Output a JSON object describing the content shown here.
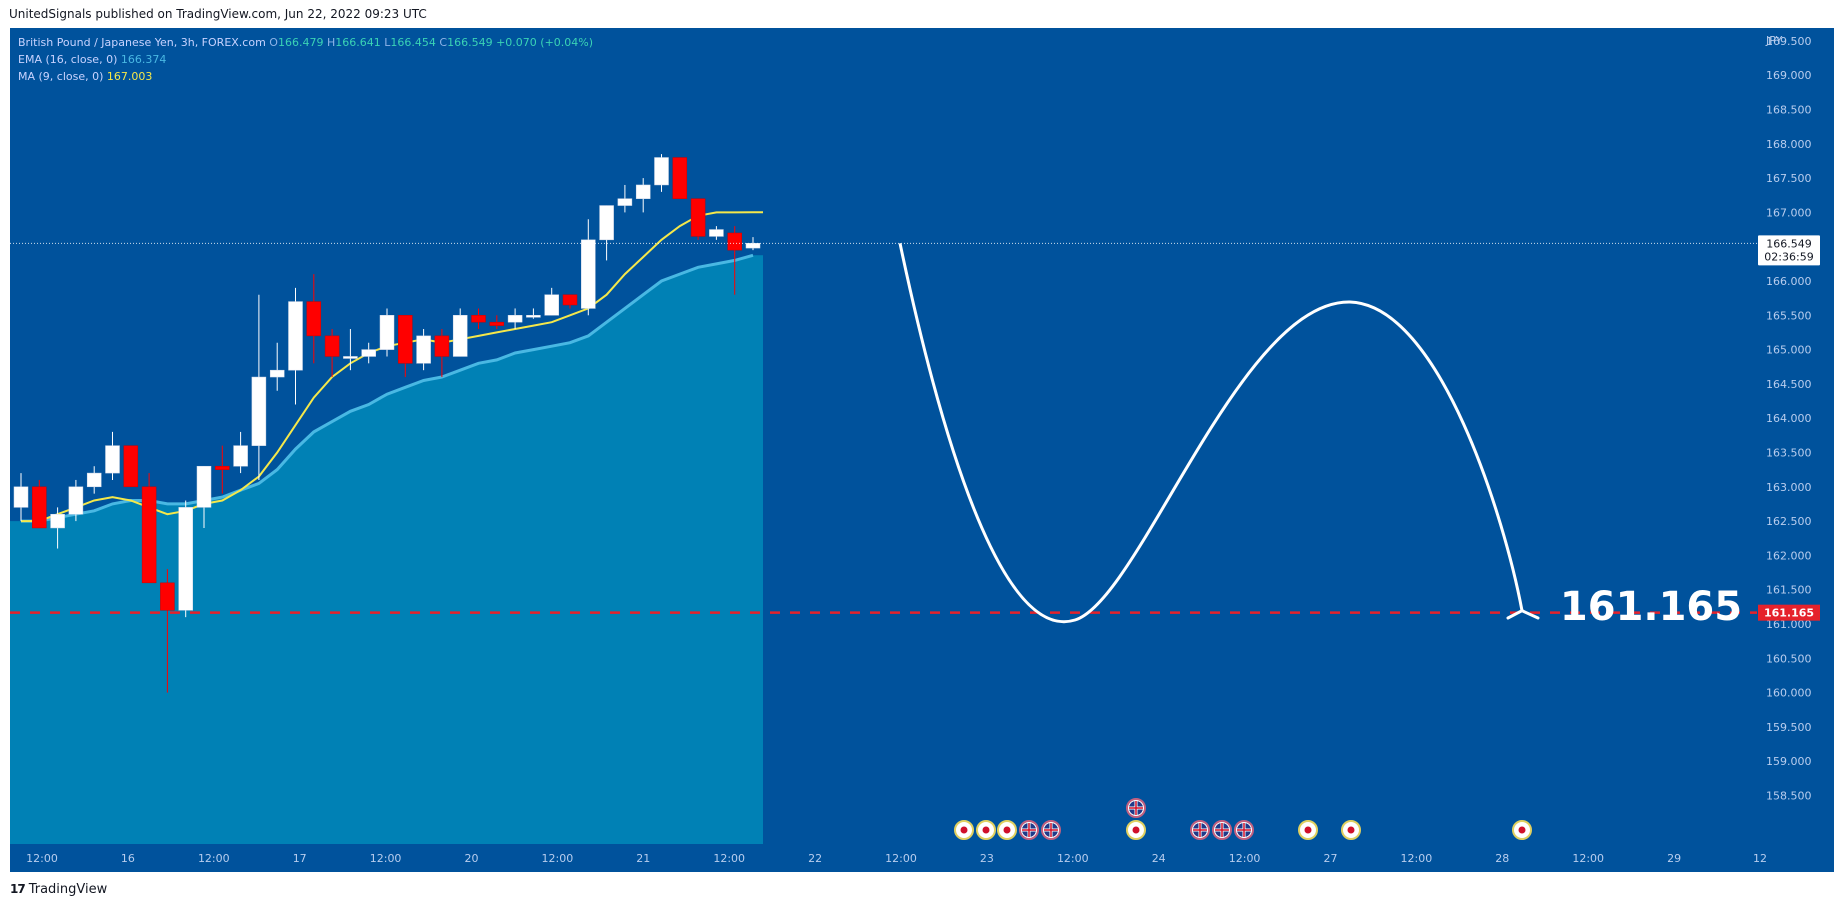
{
  "header": {
    "publish_text": "UnitedSignals published on TradingView.com, Jun 22, 2022 09:23 UTC"
  },
  "legend": {
    "symbol": "British Pound / Japanese Yen, 3h, FOREX.com",
    "o_label": "O",
    "o_value": "166.479",
    "h_label": "H",
    "h_value": "166.641",
    "l_label": "L",
    "l_value": "166.454",
    "c_label": "C",
    "c_value": "166.549",
    "change": "+0.070 (+0.04%)",
    "ema_label": "EMA (16, close, 0)",
    "ema_value": "166.374",
    "ma_label": "MA (9, close, 0)",
    "ma_value": "167.003"
  },
  "price_axis": {
    "currency": "JPY",
    "ticks": [
      "169.500",
      "169.000",
      "168.500",
      "168.000",
      "167.500",
      "167.000",
      "166.500",
      "166.000",
      "165.500",
      "165.000",
      "164.500",
      "164.000",
      "163.500",
      "163.000",
      "162.500",
      "162.000",
      "161.500",
      "161.000",
      "160.500",
      "160.000",
      "159.500",
      "159.000",
      "158.500"
    ],
    "current_price": "166.549",
    "countdown": "02:36:59",
    "target_price": "161.165"
  },
  "time_axis": {
    "labels": [
      "12:00",
      "16",
      "12:00",
      "17",
      "12:00",
      "20",
      "12:00",
      "21",
      "12:00",
      "22",
      "12:00",
      "23",
      "12:00",
      "24",
      "12:00",
      "27",
      "12:00",
      "28",
      "12:00",
      "29",
      "12"
    ]
  },
  "annotation": {
    "target_text": "161.165"
  },
  "footer": {
    "brand": "TradingView"
  },
  "colors": {
    "background": "#00529c",
    "area_fill": "#0081b5",
    "ema_line": "#49b8e3",
    "ma_line": "#f5e84a",
    "bull_candle": "#ffffff",
    "bear_candle": "#ff0000",
    "target_line": "#e5222b",
    "projection_path": "#ffffff"
  },
  "chart_data": {
    "type": "candlestick",
    "symbol": "British Pound / Japanese Yen, 3h, FOREX.com",
    "timeframe": "3h",
    "y_range": [
      158.2,
      170.0
    ],
    "candles": [
      {
        "o": 162.7,
        "h": 163.2,
        "l": 162.5,
        "c": 163.0
      },
      {
        "o": 163.0,
        "h": 163.1,
        "l": 162.4,
        "c": 162.4
      },
      {
        "o": 162.4,
        "h": 162.7,
        "l": 162.1,
        "c": 162.6
      },
      {
        "o": 162.6,
        "h": 163.1,
        "l": 162.5,
        "c": 163.0
      },
      {
        "o": 163.0,
        "h": 163.3,
        "l": 162.9,
        "c": 163.2
      },
      {
        "o": 163.2,
        "h": 163.8,
        "l": 163.1,
        "c": 163.6
      },
      {
        "o": 163.6,
        "h": 163.6,
        "l": 163.0,
        "c": 163.0
      },
      {
        "o": 163.0,
        "h": 163.2,
        "l": 161.6,
        "c": 161.6
      },
      {
        "o": 161.6,
        "h": 161.8,
        "l": 160.0,
        "c": 161.2
      },
      {
        "o": 161.2,
        "h": 162.8,
        "l": 161.1,
        "c": 162.7
      },
      {
        "o": 162.7,
        "h": 163.3,
        "l": 162.4,
        "c": 163.3
      },
      {
        "o": 163.3,
        "h": 163.6,
        "l": 162.9,
        "c": 163.25
      },
      {
        "o": 163.3,
        "h": 163.8,
        "l": 163.2,
        "c": 163.6
      },
      {
        "o": 163.6,
        "h": 165.8,
        "l": 163.1,
        "c": 164.6
      },
      {
        "o": 164.6,
        "h": 165.1,
        "l": 164.4,
        "c": 164.7
      },
      {
        "o": 164.7,
        "h": 165.9,
        "l": 164.2,
        "c": 165.7
      },
      {
        "o": 165.7,
        "h": 166.1,
        "l": 164.8,
        "c": 165.2
      },
      {
        "o": 165.2,
        "h": 165.3,
        "l": 164.6,
        "c": 164.9
      },
      {
        "o": 164.9,
        "h": 165.3,
        "l": 164.7,
        "c": 164.9
      },
      {
        "o": 164.9,
        "h": 165.1,
        "l": 164.8,
        "c": 165.0
      },
      {
        "o": 165.0,
        "h": 165.6,
        "l": 164.9,
        "c": 165.5
      },
      {
        "o": 165.5,
        "h": 165.5,
        "l": 164.6,
        "c": 164.8
      },
      {
        "o": 164.8,
        "h": 165.3,
        "l": 164.7,
        "c": 165.2
      },
      {
        "o": 165.2,
        "h": 165.3,
        "l": 164.6,
        "c": 164.9
      },
      {
        "o": 164.9,
        "h": 165.6,
        "l": 164.9,
        "c": 165.5
      },
      {
        "o": 165.5,
        "h": 165.6,
        "l": 165.3,
        "c": 165.4
      },
      {
        "o": 165.4,
        "h": 165.5,
        "l": 165.3,
        "c": 165.35
      },
      {
        "o": 165.4,
        "h": 165.6,
        "l": 165.3,
        "c": 165.5
      },
      {
        "o": 165.5,
        "h": 165.6,
        "l": 165.45,
        "c": 165.5
      },
      {
        "o": 165.5,
        "h": 165.9,
        "l": 165.5,
        "c": 165.8
      },
      {
        "o": 165.8,
        "h": 165.8,
        "l": 165.6,
        "c": 165.65
      },
      {
        "o": 165.6,
        "h": 166.9,
        "l": 165.5,
        "c": 166.6
      },
      {
        "o": 166.6,
        "h": 167.1,
        "l": 166.3,
        "c": 167.1
      },
      {
        "o": 167.1,
        "h": 167.4,
        "l": 167.0,
        "c": 167.2
      },
      {
        "o": 167.2,
        "h": 167.5,
        "l": 167.0,
        "c": 167.4
      },
      {
        "o": 167.4,
        "h": 167.85,
        "l": 167.3,
        "c": 167.8
      },
      {
        "o": 167.8,
        "h": 167.8,
        "l": 167.2,
        "c": 167.2
      },
      {
        "o": 167.2,
        "h": 167.2,
        "l": 166.6,
        "c": 166.65
      },
      {
        "o": 166.65,
        "h": 166.8,
        "l": 166.6,
        "c": 166.75
      },
      {
        "o": 166.7,
        "h": 166.8,
        "l": 165.8,
        "c": 166.45
      },
      {
        "o": 166.48,
        "h": 166.64,
        "l": 166.45,
        "c": 166.55
      }
    ],
    "ema16": [
      162.5,
      162.5,
      162.55,
      162.6,
      162.65,
      162.75,
      162.8,
      162.8,
      162.75,
      162.75,
      162.8,
      162.85,
      162.95,
      163.05,
      163.25,
      163.55,
      163.8,
      163.95,
      164.1,
      164.2,
      164.35,
      164.45,
      164.55,
      164.6,
      164.7,
      164.8,
      164.85,
      164.95,
      165.0,
      165.05,
      165.1,
      165.2,
      165.4,
      165.6,
      165.8,
      166.0,
      166.1,
      166.2,
      166.25,
      166.3,
      166.374
    ],
    "ma9": [
      162.5,
      162.5,
      162.6,
      162.7,
      162.8,
      162.85,
      162.8,
      162.7,
      162.6,
      162.65,
      162.75,
      162.8,
      162.95,
      163.15,
      163.5,
      163.9,
      164.3,
      164.6,
      164.8,
      164.95,
      165.05,
      165.1,
      165.15,
      165.1,
      165.15,
      165.2,
      165.25,
      165.3,
      165.35,
      165.4,
      165.5,
      165.6,
      165.8,
      166.1,
      166.35,
      166.6,
      166.8,
      166.95,
      167.0,
      167.0,
      167.003
    ],
    "target": 161.165,
    "current": 166.549,
    "projection_points": [
      [
        166.549
      ],
      [
        161.4
      ],
      [
        166.1
      ],
      [
        161.165
      ]
    ],
    "event_markers": [
      {
        "type": "circle",
        "row": "bottom"
      },
      {
        "type": "circle",
        "row": "bottom"
      },
      {
        "type": "circle",
        "row": "bottom"
      },
      {
        "type": "flag",
        "row": "bottom"
      },
      {
        "type": "flag",
        "row": "bottom"
      },
      {
        "type": "flag",
        "row": "top"
      },
      {
        "type": "circle",
        "row": "bottom"
      },
      {
        "type": "flag",
        "row": "bottom"
      },
      {
        "type": "flag",
        "row": "bottom"
      },
      {
        "type": "flag",
        "row": "bottom"
      },
      {
        "type": "circle",
        "row": "bottom"
      },
      {
        "type": "circle",
        "row": "bottom"
      },
      {
        "type": "circle",
        "row": "bottom"
      }
    ]
  }
}
